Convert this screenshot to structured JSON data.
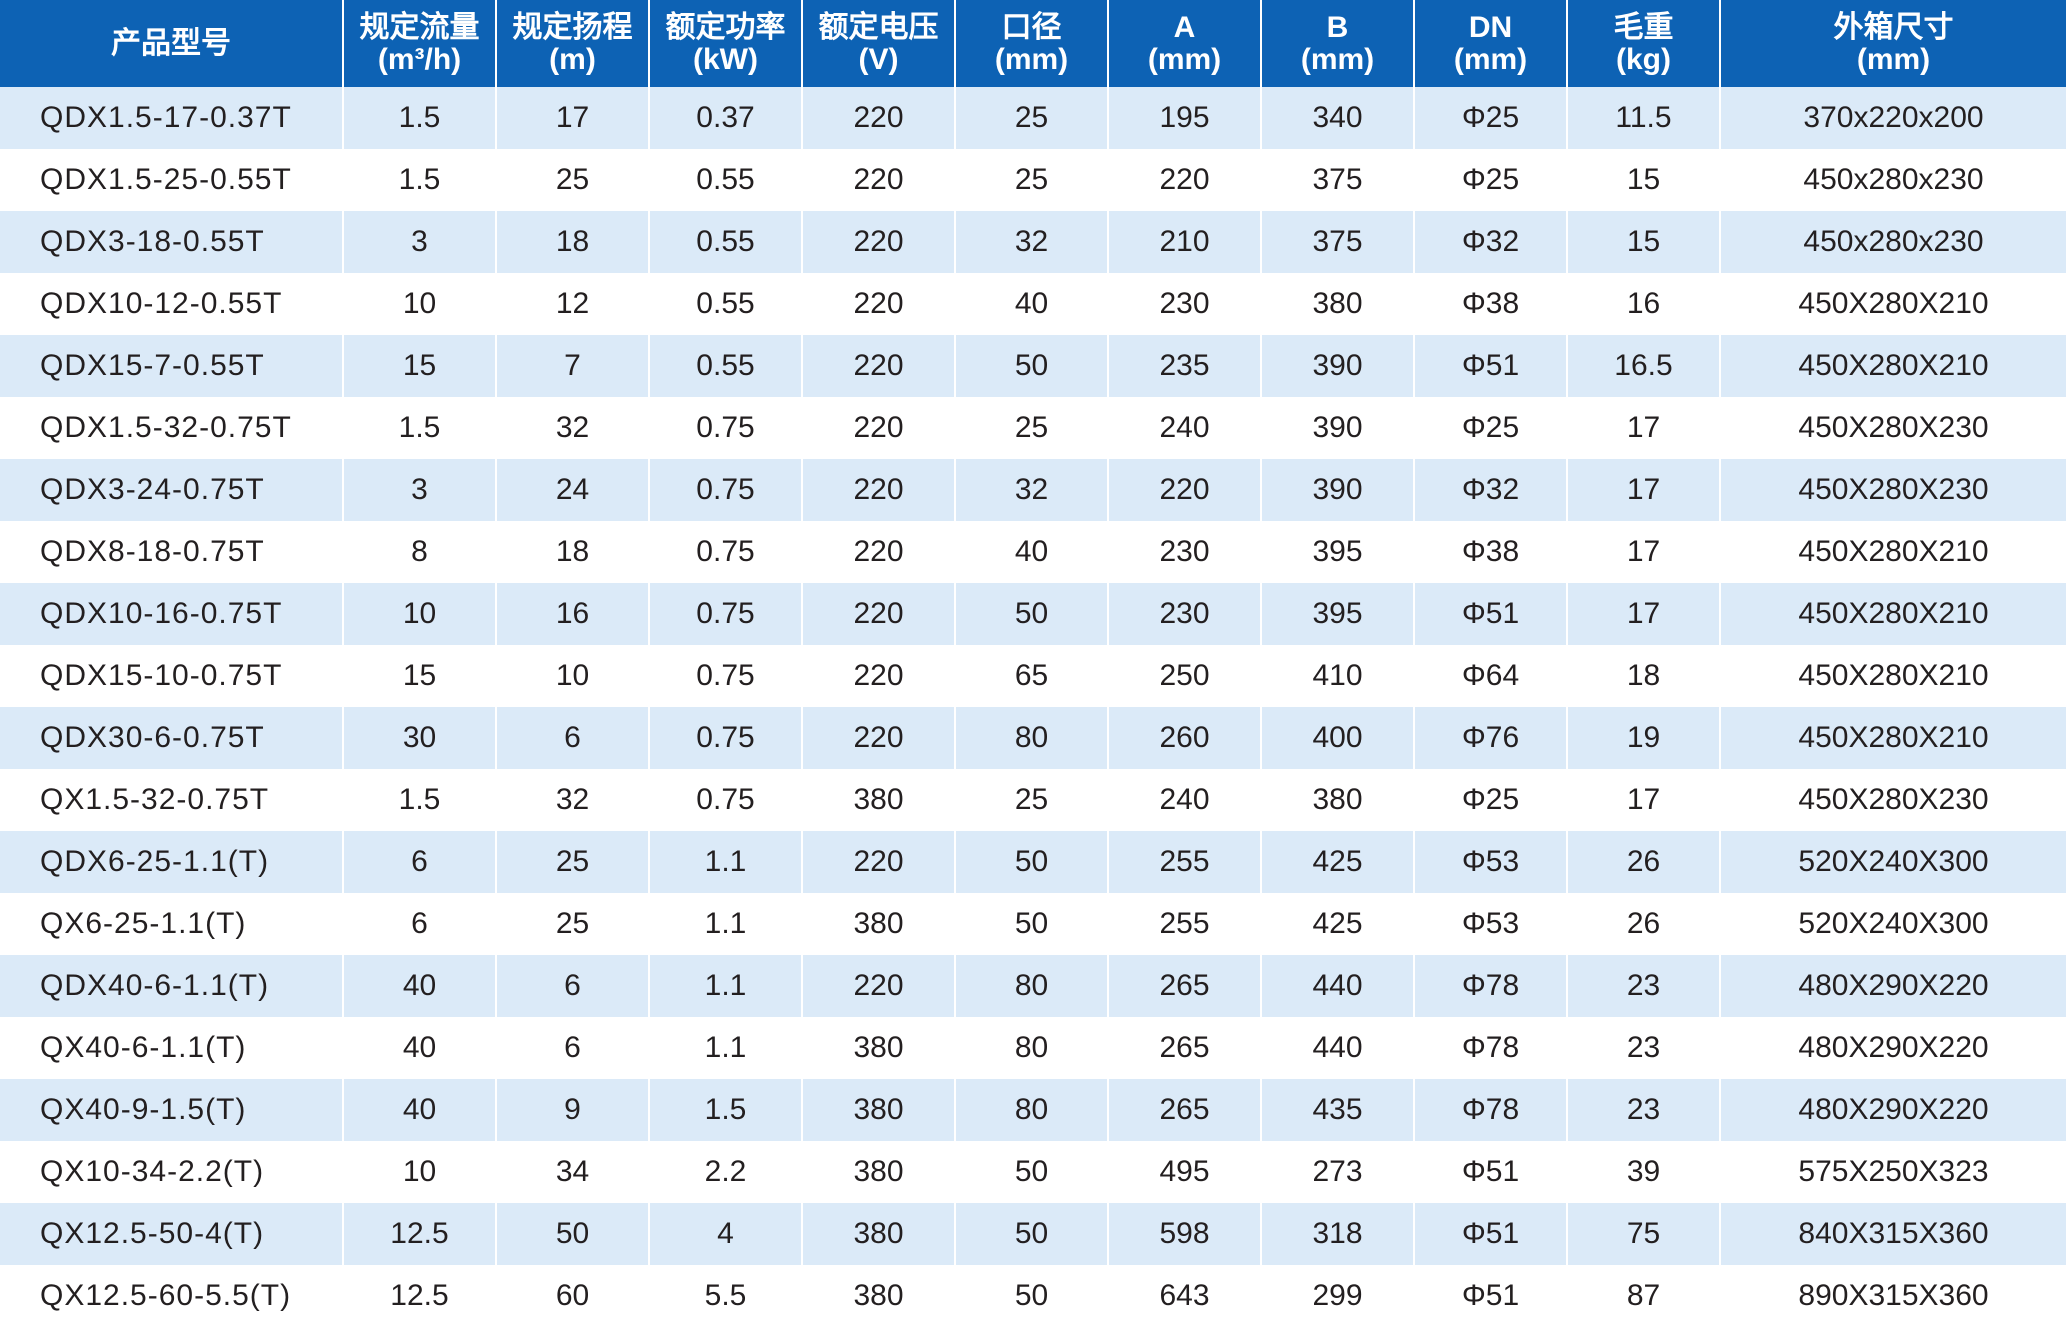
{
  "colors": {
    "header_bg": "#0d62b4",
    "header_text": "#ffffff",
    "stripe_row": "#dbeaf8",
    "plain_row": "#ffffff",
    "body_text": "#231f20"
  },
  "headers": [
    {
      "label": "产品型号",
      "unit": ""
    },
    {
      "label": "规定流量",
      "unit": "(m³/h)"
    },
    {
      "label": "规定扬程",
      "unit": "(m)"
    },
    {
      "label": "额定功率",
      "unit": "(kW)"
    },
    {
      "label": "额定电压",
      "unit": "(V)"
    },
    {
      "label": "口径",
      "unit": "(mm)"
    },
    {
      "label": "A",
      "unit": "(mm)"
    },
    {
      "label": "B",
      "unit": "(mm)"
    },
    {
      "label": "DN",
      "unit": "(mm)"
    },
    {
      "label": "毛重",
      "unit": "(kg)"
    },
    {
      "label": "外箱尺寸",
      "unit": "(mm)"
    }
  ],
  "rows": [
    [
      "QDX1.5-17-0.37T",
      "1.5",
      "17",
      "0.37",
      "220",
      "25",
      "195",
      "340",
      "Φ25",
      "11.5",
      "370x220x200"
    ],
    [
      "QDX1.5-25-0.55T",
      "1.5",
      "25",
      "0.55",
      "220",
      "25",
      "220",
      "375",
      "Φ25",
      "15",
      "450x280x230"
    ],
    [
      "QDX3-18-0.55T",
      "3",
      "18",
      "0.55",
      "220",
      "32",
      "210",
      "375",
      "Φ32",
      "15",
      "450x280x230"
    ],
    [
      "QDX10-12-0.55T",
      "10",
      "12",
      "0.55",
      "220",
      "40",
      "230",
      "380",
      "Φ38",
      "16",
      "450X280X210"
    ],
    [
      "QDX15-7-0.55T",
      "15",
      "7",
      "0.55",
      "220",
      "50",
      "235",
      "390",
      "Φ51",
      "16.5",
      "450X280X210"
    ],
    [
      "QDX1.5-32-0.75T",
      "1.5",
      "32",
      "0.75",
      "220",
      "25",
      "240",
      "390",
      "Φ25",
      "17",
      "450X280X230"
    ],
    [
      "QDX3-24-0.75T",
      "3",
      "24",
      "0.75",
      "220",
      "32",
      "220",
      "390",
      "Φ32",
      "17",
      "450X280X230"
    ],
    [
      "QDX8-18-0.75T",
      "8",
      "18",
      "0.75",
      "220",
      "40",
      "230",
      "395",
      "Φ38",
      "17",
      "450X280X210"
    ],
    [
      "QDX10-16-0.75T",
      "10",
      "16",
      "0.75",
      "220",
      "50",
      "230",
      "395",
      "Φ51",
      "17",
      "450X280X210"
    ],
    [
      "QDX15-10-0.75T",
      "15",
      "10",
      "0.75",
      "220",
      "65",
      "250",
      "410",
      "Φ64",
      "18",
      "450X280X210"
    ],
    [
      "QDX30-6-0.75T",
      "30",
      "6",
      "0.75",
      "220",
      "80",
      "260",
      "400",
      "Φ76",
      "19",
      "450X280X210"
    ],
    [
      "QX1.5-32-0.75T",
      "1.5",
      "32",
      "0.75",
      "380",
      "25",
      "240",
      "380",
      "Φ25",
      "17",
      "450X280X230"
    ],
    [
      "QDX6-25-1.1(T)",
      "6",
      "25",
      "1.1",
      "220",
      "50",
      "255",
      "425",
      "Φ53",
      "26",
      "520X240X300"
    ],
    [
      "QX6-25-1.1(T)",
      "6",
      "25",
      "1.1",
      "380",
      "50",
      "255",
      "425",
      "Φ53",
      "26",
      "520X240X300"
    ],
    [
      "QDX40-6-1.1(T)",
      "40",
      "6",
      "1.1",
      "220",
      "80",
      "265",
      "440",
      "Φ78",
      "23",
      "480X290X220"
    ],
    [
      "QX40-6-1.1(T)",
      "40",
      "6",
      "1.1",
      "380",
      "80",
      "265",
      "440",
      "Φ78",
      "23",
      "480X290X220"
    ],
    [
      "QX40-9-1.5(T)",
      "40",
      "9",
      "1.5",
      "380",
      "80",
      "265",
      "435",
      "Φ78",
      "23",
      "480X290X220"
    ],
    [
      "QX10-34-2.2(T)",
      "10",
      "34",
      "2.2",
      "380",
      "50",
      "495",
      "273",
      "Φ51",
      "39",
      "575X250X323"
    ],
    [
      "QX12.5-50-4(T)",
      "12.5",
      "50",
      "4",
      "380",
      "50",
      "598",
      "318",
      "Φ51",
      "75",
      "840X315X360"
    ],
    [
      "QX12.5-60-5.5(T)",
      "12.5",
      "60",
      "5.5",
      "380",
      "50",
      "643",
      "299",
      "Φ51",
      "87",
      "890X315X360"
    ]
  ]
}
